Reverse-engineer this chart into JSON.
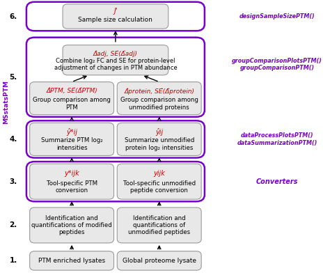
{
  "bg_color": "#ffffff",
  "box_face_color": "#e8e8e8",
  "box_edge_color": "#999999",
  "purple_edge_color": "#7700cc",
  "red_text_color": "#cc0000",
  "purple_text_color": "#7700cc",
  "black_text_color": "#000000",
  "msstats_label": "MSstatsPTM",
  "step_labels": [
    "1.",
    "2.",
    "3.",
    "4.",
    "5.",
    "6."
  ],
  "box1_left_text": "PTM enriched lysates",
  "box1_right_text": "Global proteome lysate",
  "box2_left_text": "Identification and\nquantifications of modified\npeptides",
  "box2_right_text": "Identification and\nquantifications of\nunmodified peptides",
  "box3_left_text": "Tool-specific PTM\nconversion",
  "box3_left_formula": "y*ijk",
  "box3_right_text": "Tool-specific unmodified\npeptide conversion",
  "box3_right_formula": "yijk",
  "box3_right_label": "Converters",
  "box4_left_text": "Summarize PTM log₂\nintensities",
  "box4_left_formula": "ŷ*ij",
  "box4_right_text": "Summarize unmodified\nprotein log₂ intensities",
  "box4_right_formula": "ŷij",
  "box4_right_label1": "dataSummarizationPTM()",
  "box4_right_label2": "dataProcessPlotsPTM()",
  "box5a_left_text": "Group comparison among\nPTM",
  "box5a_left_formula": "Δ̂PTM, SÊ(Δ̂PTM)",
  "box5a_right_text": "Group comparison among\nunmodified proteins",
  "box5a_right_formula": "Δ̂protein, SÊ(Δ̂protein)",
  "box5b_text": "Combine log₂ FC and SE for protein-level\nadjustment of changes in PTM abundance",
  "box5b_formula": "Δ̂adj, SÊ(Δ̂adj)",
  "box5_right_label1": "groupComparisonPTM()",
  "box5_right_label2": "groupComparisonPlotsPTM()",
  "box6_text": "Sample size calculation",
  "box6_formula": "J'",
  "box6_right_label": "designSampleSizePTM()"
}
